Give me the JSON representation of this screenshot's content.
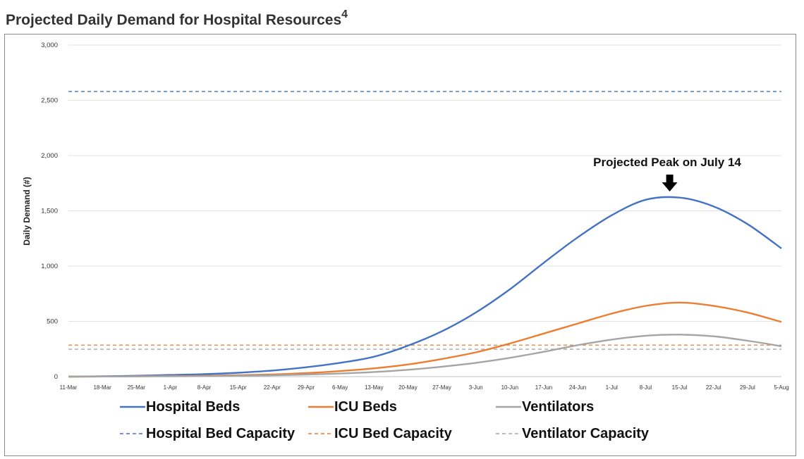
{
  "page": {
    "title": "Projected Daily Demand for Hospital Resources",
    "title_superscript": "4"
  },
  "chart_data": {
    "type": "line",
    "title": "Projected Daily Demand for Hospital Resources",
    "xlabel": "",
    "ylabel": "Daily Demand (#)",
    "ylim": [
      0,
      3000
    ],
    "yticks": [
      0,
      500,
      1000,
      1500,
      2000,
      2500,
      3000
    ],
    "ytick_labels": [
      "0",
      "500",
      "1,000",
      "1,500",
      "2,000",
      "2,500",
      "3,000"
    ],
    "grid": "horizontal",
    "legend_position": "bottom",
    "x_tick_labels": [
      "11-Mar",
      "18-Mar",
      "25-Mar",
      "1-Apr",
      "8-Apr",
      "15-Apr",
      "22-Apr",
      "29-Apr",
      "6-May",
      "13-May",
      "20-May",
      "27-May",
      "3-Jun",
      "10-Jun",
      "17-Jun",
      "24-Jun",
      "1-Jul",
      "8-Jul",
      "15-Jul",
      "22-Jul",
      "29-Jul",
      "5-Aug"
    ],
    "series": [
      {
        "name": "Hospital Beds",
        "style": "solid",
        "color": "#4472C4",
        "values": [
          0,
          3,
          8,
          15,
          22,
          35,
          55,
          85,
          125,
          180,
          280,
          410,
          580,
          790,
          1030,
          1260,
          1460,
          1600,
          1620,
          1540,
          1380,
          1160
        ]
      },
      {
        "name": "ICU Beds",
        "style": "solid",
        "color": "#ED7D31",
        "values": [
          0,
          1,
          3,
          5,
          8,
          13,
          20,
          32,
          50,
          75,
          110,
          160,
          220,
          300,
          390,
          480,
          570,
          640,
          670,
          640,
          580,
          495
        ]
      },
      {
        "name": "Ventilators",
        "style": "solid",
        "color": "#A5A5A5",
        "values": [
          0,
          1,
          2,
          3,
          5,
          8,
          12,
          19,
          28,
          42,
          62,
          90,
          125,
          170,
          225,
          285,
          335,
          370,
          380,
          365,
          325,
          275
        ]
      },
      {
        "name": "Hospital Bed Capacity",
        "style": "dashed",
        "color": "#4472C4",
        "values": [
          2580
        ]
      },
      {
        "name": "ICU Bed Capacity",
        "style": "dashed",
        "color": "#ED7D31",
        "values": [
          285
        ]
      },
      {
        "name": "Ventilator Capacity",
        "style": "dashed",
        "color": "#A5A5A5",
        "values": [
          248
        ]
      }
    ],
    "annotation": {
      "text": "Projected Peak on July 14",
      "x_index": 18,
      "y": 1620
    }
  }
}
